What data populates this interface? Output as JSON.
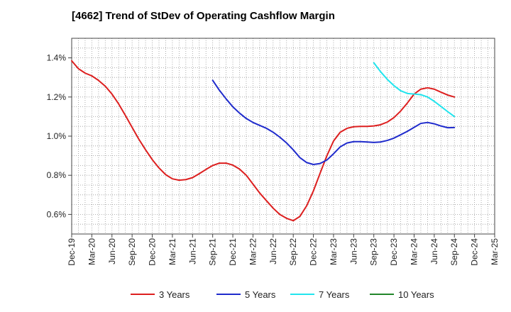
{
  "chart_data": {
    "type": "line",
    "title": "[4662]  Trend of StDev of Operating Cashflow Margin",
    "xlabel": "",
    "ylabel": "",
    "x_categories": [
      "Dec-19",
      "Mar-20",
      "Jun-20",
      "Sep-20",
      "Dec-20",
      "Mar-21",
      "Jun-21",
      "Sep-21",
      "Dec-21",
      "Mar-22",
      "Jun-22",
      "Sep-22",
      "Dec-22",
      "Mar-23",
      "Jun-23",
      "Sep-23",
      "Dec-23",
      "Mar-24",
      "Jun-24",
      "Sep-24",
      "Dec-24",
      "Mar-25"
    ],
    "ylim": [
      0.5,
      1.5
    ],
    "y_ticks": [
      0.6,
      0.8,
      1.0,
      1.2,
      1.4
    ],
    "y_tick_labels": [
      "0.6%",
      "0.8%",
      "1.0%",
      "1.2%",
      "1.4%"
    ],
    "grid": true,
    "legend_position": "bottom",
    "series": [
      {
        "name": "3 Years",
        "color": "#dd1f1f",
        "points": [
          [
            0,
            1.385
          ],
          [
            0.33,
            1.345
          ],
          [
            0.67,
            1.322
          ],
          [
            1,
            1.308
          ],
          [
            1.33,
            1.285
          ],
          [
            1.67,
            1.255
          ],
          [
            2,
            1.215
          ],
          [
            2.33,
            1.165
          ],
          [
            2.67,
            1.105
          ],
          [
            3,
            1.045
          ],
          [
            3.33,
            0.985
          ],
          [
            3.67,
            0.93
          ],
          [
            4,
            0.88
          ],
          [
            4.33,
            0.838
          ],
          [
            4.67,
            0.803
          ],
          [
            5,
            0.782
          ],
          [
            5.33,
            0.775
          ],
          [
            5.67,
            0.778
          ],
          [
            6,
            0.788
          ],
          [
            6.33,
            0.808
          ],
          [
            6.67,
            0.83
          ],
          [
            7,
            0.85
          ],
          [
            7.33,
            0.862
          ],
          [
            7.67,
            0.862
          ],
          [
            8,
            0.852
          ],
          [
            8.33,
            0.832
          ],
          [
            8.67,
            0.8
          ],
          [
            9,
            0.755
          ],
          [
            9.33,
            0.71
          ],
          [
            9.67,
            0.67
          ],
          [
            10,
            0.632
          ],
          [
            10.33,
            0.6
          ],
          [
            10.67,
            0.58
          ],
          [
            11,
            0.568
          ],
          [
            11.33,
            0.59
          ],
          [
            11.67,
            0.645
          ],
          [
            12,
            0.72
          ],
          [
            12.33,
            0.81
          ],
          [
            12.67,
            0.9
          ],
          [
            13,
            0.975
          ],
          [
            13.33,
            1.02
          ],
          [
            13.67,
            1.04
          ],
          [
            14,
            1.048
          ],
          [
            14.33,
            1.05
          ],
          [
            14.67,
            1.05
          ],
          [
            15,
            1.052
          ],
          [
            15.33,
            1.058
          ],
          [
            15.67,
            1.072
          ],
          [
            16,
            1.095
          ],
          [
            16.33,
            1.128
          ],
          [
            16.67,
            1.17
          ],
          [
            17,
            1.215
          ],
          [
            17.33,
            1.24
          ],
          [
            17.67,
            1.247
          ],
          [
            18,
            1.24
          ],
          [
            18.33,
            1.225
          ],
          [
            18.67,
            1.21
          ],
          [
            19,
            1.2
          ]
        ]
      },
      {
        "name": "5 Years",
        "color": "#1f2bcc",
        "points": [
          [
            7,
            1.285
          ],
          [
            7.33,
            1.235
          ],
          [
            7.67,
            1.19
          ],
          [
            8,
            1.15
          ],
          [
            8.33,
            1.118
          ],
          [
            8.67,
            1.09
          ],
          [
            9,
            1.07
          ],
          [
            9.33,
            1.055
          ],
          [
            9.67,
            1.04
          ],
          [
            10,
            1.02
          ],
          [
            10.33,
            0.995
          ],
          [
            10.67,
            0.965
          ],
          [
            11,
            0.93
          ],
          [
            11.33,
            0.89
          ],
          [
            11.67,
            0.865
          ],
          [
            12,
            0.855
          ],
          [
            12.33,
            0.86
          ],
          [
            12.67,
            0.878
          ],
          [
            13,
            0.91
          ],
          [
            13.33,
            0.945
          ],
          [
            13.67,
            0.965
          ],
          [
            14,
            0.972
          ],
          [
            14.33,
            0.972
          ],
          [
            14.67,
            0.97
          ],
          [
            15,
            0.968
          ],
          [
            15.33,
            0.97
          ],
          [
            15.67,
            0.978
          ],
          [
            16,
            0.99
          ],
          [
            16.33,
            1.007
          ],
          [
            16.67,
            1.025
          ],
          [
            17,
            1.045
          ],
          [
            17.33,
            1.065
          ],
          [
            17.67,
            1.07
          ],
          [
            18,
            1.063
          ],
          [
            18.33,
            1.052
          ],
          [
            18.67,
            1.043
          ],
          [
            19,
            1.044
          ]
        ]
      },
      {
        "name": "7 Years",
        "color": "#22e5ee",
        "points": [
          [
            15,
            1.375
          ],
          [
            15.33,
            1.33
          ],
          [
            15.67,
            1.29
          ],
          [
            16,
            1.258
          ],
          [
            16.33,
            1.232
          ],
          [
            16.67,
            1.218
          ],
          [
            17,
            1.215
          ],
          [
            17.33,
            1.212
          ],
          [
            17.67,
            1.2
          ],
          [
            18,
            1.178
          ],
          [
            18.33,
            1.152
          ],
          [
            18.67,
            1.125
          ],
          [
            19,
            1.1
          ]
        ]
      },
      {
        "name": "10 Years",
        "color": "#22862a",
        "points": []
      }
    ]
  }
}
